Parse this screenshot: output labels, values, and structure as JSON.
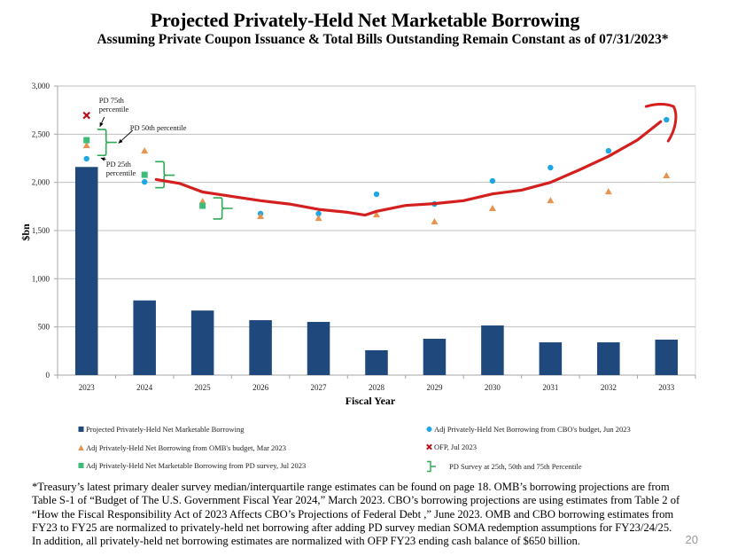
{
  "header": {
    "title": "Projected Privately-Held Net Marketable Borrowing",
    "subtitle": "Assuming Private Coupon Issuance & Total Bills Outstanding Remain Constant as of 07/31/2023*"
  },
  "chart_data": {
    "type": "bar",
    "title": "Projected Privately-Held Net Marketable Borrowing",
    "subtitle": "Assuming Private Coupon Issuance & Total Bills Outstanding Remain Constant as of 07/31/2023*",
    "xlabel": "Fiscal Year",
    "ylabel": "$bn",
    "ylim": [
      0,
      3000
    ],
    "yticks": [
      0,
      500,
      1000,
      1500,
      2000,
      2500,
      3000
    ],
    "ytick_labels": [
      "0",
      "500",
      "1,000",
      "1,500",
      "2,000",
      "2,500",
      "3,000"
    ],
    "grid": true,
    "categories": [
      "2023",
      "2024",
      "2025",
      "2026",
      "2027",
      "2028",
      "2029",
      "2030",
      "2031",
      "2032",
      "2033"
    ],
    "series": [
      {
        "name": "Projected Privately-Held Net Marketable Borrowing",
        "type": "bar",
        "color": "#1f497d",
        "values": [
          2160,
          775,
          670,
          570,
          552,
          258,
          377,
          515,
          340,
          340,
          368
        ]
      },
      {
        "name": "Adj Privately-Held Net Borrowing from CBO's budget, Jun 2023",
        "type": "scatter",
        "marker": "circle",
        "color": "#1ea7e4",
        "values": [
          2245,
          2005,
          null,
          1675,
          1675,
          1877,
          1776,
          2015,
          2153,
          2327,
          2650
        ]
      },
      {
        "name": "Adj Privately-Held Net Borrowing from OMB's budget, Mar 2023",
        "type": "scatter",
        "marker": "triangle",
        "color": "#e8944f",
        "values": [
          2383,
          2327,
          1803,
          1647,
          1628,
          1665,
          1592,
          1730,
          1812,
          1904,
          2070
        ]
      },
      {
        "name": "OFP, Jul 2023",
        "type": "scatter",
        "marker": "x",
        "color": "#b5121b",
        "values": [
          2695,
          null,
          null,
          null,
          null,
          null,
          null,
          null,
          null,
          null,
          null
        ]
      },
      {
        "name": "Adj Privately-Held Net Marketable Borrowing from PD survey, Jul 2023",
        "type": "scatter",
        "marker": "square",
        "color": "#3dbb78",
        "values": [
          2438,
          2079,
          1757,
          null,
          null,
          null,
          null,
          null,
          null,
          null,
          null
        ]
      },
      {
        "name": "PD Survey at 25th, 50th and 75th Percentile",
        "type": "range-bracket",
        "color": "#2eaa55",
        "ranges": [
          {
            "category": "2023",
            "p25": 2280,
            "p50": 2415,
            "p75": 2550
          },
          {
            "category": "2024",
            "p25": 1945,
            "p50": 2075,
            "p75": 2215
          },
          {
            "category": "2025",
            "p25": 1620,
            "p50": 1730,
            "p75": 1840
          }
        ]
      }
    ],
    "annotations": [
      {
        "text_lines": [
          "PD 75th",
          "percentile"
        ],
        "points_to": "2023 p75"
      },
      {
        "text_lines": [
          "PD 50th percentile"
        ],
        "points_to": "2023 p50"
      },
      {
        "text_lines": [
          "PD 25th",
          "percentile"
        ],
        "points_to": "2023 p25"
      }
    ],
    "hand_drawn_trend": {
      "color": "#d41f1f",
      "description": "Hand-drawn red curve from 2024 to 2033 with hook at end",
      "x_values": [
        2024.2,
        2024.6,
        2025.0,
        2025.5,
        2026.0,
        2026.5,
        2027.0,
        2027.5,
        2027.8,
        2028.0,
        2028.5,
        2029.0,
        2029.5,
        2030.0,
        2030.5,
        2031.0,
        2031.5,
        2032.0,
        2032.5,
        2032.9
      ],
      "y_values": [
        2030,
        1990,
        1900,
        1855,
        1810,
        1775,
        1720,
        1690,
        1660,
        1700,
        1760,
        1780,
        1810,
        1880,
        1920,
        2000,
        2130,
        2270,
        2440,
        2630
      ]
    },
    "legend": {
      "placement": "bottom",
      "entries": [
        {
          "label": "Projected Privately-Held Net Marketable Borrowing",
          "marker": "square",
          "color": "#1f497d"
        },
        {
          "label": "Adj Privately-Held Net Borrowing from CBO's budget, Jun 2023",
          "marker": "circle",
          "color": "#1ea7e4"
        },
        {
          "label": "Adj Privately-Held Net Borrowing from OMB's budget, Mar 2023",
          "marker": "triangle",
          "color": "#e8944f"
        },
        {
          "label": "OFP, Jul 2023",
          "marker": "x",
          "color": "#b5121b"
        },
        {
          "label": "Adj Privately-Held Net Marketable Borrowing from PD survey, Jul 2023",
          "marker": "square",
          "color": "#3dbb78"
        },
        {
          "label": "PD Survey at 25th, 50th and 75th Percentile",
          "marker": "bracket",
          "color": "#2eaa55"
        }
      ]
    }
  },
  "footnote": {
    "lines": [
      "*Treasury’s latest primary dealer survey median/interquartile range estimates can be found on page 18. OMB’s borrowing projections are from",
      "Table S-1 of “Budget of The U.S. Government Fiscal Year 2024,” March 2023. CBO’s borrowing projections are using estimates from Table 2 of",
      "“How the Fiscal Responsibility Act of 2023 Affects CBO’s Projections of Federal Debt ,” June 2023. OMB and CBO borrowing estimates from",
      "FY23 to FY25 are normalized to privately-held net borrowing after adding PD survey median SOMA redemption assumptions for FY23/24/25.",
      "In addition, all privately-held net borrowing estimates are normalized with OFP FY23 ending cash balance of $650 billion."
    ]
  },
  "page_number": "20"
}
